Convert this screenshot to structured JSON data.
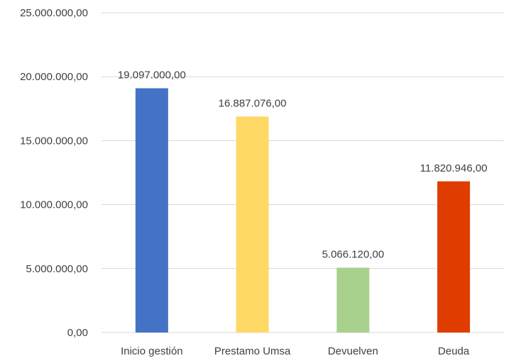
{
  "chart_data": {
    "type": "bar",
    "categories": [
      "Inicio gestión",
      "Prestamo Umsa",
      "Devuelven",
      "Deuda"
    ],
    "values": [
      19097000,
      16887076,
      5066120,
      11820946
    ],
    "data_labels": [
      "19.097.000,00",
      "16.887.076,00",
      "5.066.120,00",
      "11.820.946,00"
    ],
    "colors": [
      "#4472c4",
      "#ffd966",
      "#a9d18e",
      "#e03c00"
    ],
    "ylim": [
      0,
      25000000
    ],
    "y_ticks": [
      0,
      5000000,
      10000000,
      15000000,
      20000000,
      25000000
    ],
    "y_tick_labels": [
      "0,00",
      "5.000.000,00",
      "10.000.000,00",
      "15.000.000,00",
      "20.000.000,00",
      "25.000.000,00"
    ],
    "grid": true,
    "title": "",
    "xlabel": "",
    "ylabel": ""
  }
}
